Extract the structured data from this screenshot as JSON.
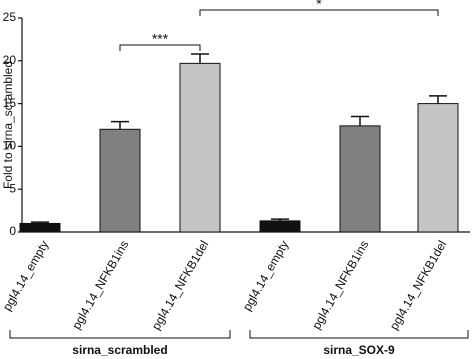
{
  "chart_data": {
    "type": "bar",
    "y_label": "Fold to sirna_scrambled",
    "categories": [
      "pgl4.14_empty",
      "pgl4.14_NFKB1ins",
      "pgl4.14_NFKB1del",
      "pgl4.14_empty",
      "pgl4.14_NFKB1ins",
      "pgl4.14_NFKB1del"
    ],
    "values": [
      1.0,
      12.0,
      19.7,
      1.3,
      12.4,
      15.0
    ],
    "errors": [
      0.15,
      0.9,
      1.1,
      0.2,
      1.1,
      0.9
    ],
    "colors": [
      "#111111",
      "#808080",
      "#c4c4c4",
      "#111111",
      "#808080",
      "#c4c4c4"
    ],
    "groups": [
      "sirna_scrambled",
      "sirna_SOX-9"
    ],
    "annotations": [
      "***",
      "*"
    ],
    "ylim": [
      0,
      25
    ],
    "yticks": [
      0,
      5,
      10,
      15,
      20,
      25
    ]
  }
}
